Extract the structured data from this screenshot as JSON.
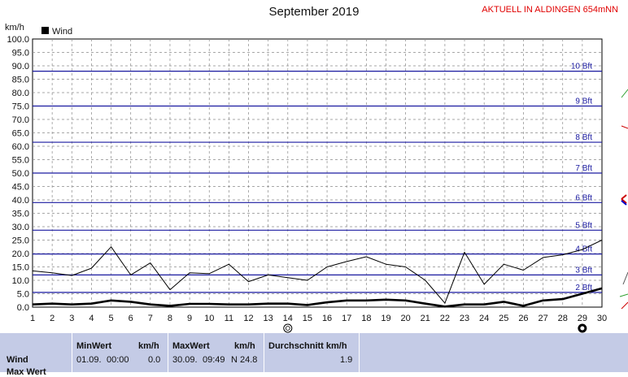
{
  "title": "September 2019",
  "station": "AKTUELL IN ALDINGEN 654mNN",
  "chart_data": {
    "type": "line",
    "ylabel": "km/h",
    "ylim": [
      0,
      100
    ],
    "yticks": [
      "0.0",
      "5.0",
      "10.0",
      "15.0",
      "20.0",
      "25.0",
      "30.0",
      "35.0",
      "40.0",
      "45.0",
      "50.0",
      "55.0",
      "60.0",
      "65.0",
      "70.0",
      "75.0",
      "80.0",
      "85.0",
      "90.0",
      "95.0",
      "100.0"
    ],
    "xlim": [
      1,
      30
    ],
    "xticks": [
      "1",
      "2",
      "3",
      "4",
      "5",
      "6",
      "7",
      "8",
      "9",
      "10",
      "11",
      "12",
      "13",
      "14",
      "15",
      "16",
      "17",
      "18",
      "19",
      "20",
      "21",
      "22",
      "23",
      "24",
      "25",
      "26",
      "27",
      "28",
      "29",
      "30"
    ],
    "legend": [
      "Wind"
    ],
    "beaufort": [
      {
        "label": "2 Bft",
        "value": 5.5
      },
      {
        "label": "3 Bft",
        "value": 12.0
      },
      {
        "label": "4 Bft",
        "value": 19.8
      },
      {
        "label": "5 Bft",
        "value": 28.7
      },
      {
        "label": "6 Bft",
        "value": 39.0
      },
      {
        "label": "7 Bft",
        "value": 50.0
      },
      {
        "label": "8 Bft",
        "value": 61.5
      },
      {
        "label": "9 Bft",
        "value": 75.0
      },
      {
        "label": "10 Bft",
        "value": 88.0
      }
    ],
    "series": [
      {
        "name": "Wind",
        "color": "#000000",
        "x": [
          1,
          2,
          3,
          4,
          5,
          6,
          7,
          8,
          9,
          10,
          11,
          12,
          13,
          14,
          15,
          16,
          17,
          18,
          19,
          20,
          21,
          22,
          23,
          24,
          25,
          26,
          27,
          28,
          29,
          30
        ],
        "values": [
          1.0,
          1.3,
          1.0,
          1.3,
          2.5,
          2.0,
          1.0,
          0.5,
          1.2,
          1.2,
          1.0,
          1.0,
          1.3,
          1.3,
          0.8,
          1.8,
          2.5,
          2.5,
          2.8,
          2.5,
          1.3,
          0.2,
          1.0,
          1.0,
          2.0,
          0.5,
          2.5,
          3.0,
          5.0,
          7.0
        ]
      },
      {
        "color": "#000000",
        "x": [
          1,
          2,
          3,
          4,
          5,
          6,
          7,
          8,
          9,
          10,
          11,
          12,
          13,
          14,
          15,
          16,
          17,
          18,
          19,
          20,
          21,
          22,
          23,
          24,
          25,
          26,
          27,
          28,
          29,
          30
        ],
        "values": [
          13.5,
          12.8,
          11.8,
          14.5,
          22.5,
          12.0,
          16.5,
          6.5,
          12.8,
          12.5,
          16.0,
          9.5,
          12.0,
          11.0,
          10.0,
          15.0,
          17.0,
          18.8,
          16.0,
          15.0,
          10.0,
          1.5,
          20.5,
          8.5,
          16.0,
          13.8,
          18.5,
          19.5,
          21.5,
          25.0
        ]
      }
    ],
    "marker_icons": [
      {
        "x": 14,
        "icon": "new-moon-icon"
      },
      {
        "x": 29,
        "icon": "full-moon-icon"
      }
    ]
  },
  "stats": {
    "headers": {
      "min": "MinWert",
      "unit1": "km/h",
      "max": "MaxWert",
      "unit2": "km/h",
      "avg": "Durchschnitt km/h"
    },
    "rows": [
      {
        "label": "Wind",
        "min_date": "01.09.",
        "min_time": "00:00",
        "min_val": "0.0",
        "max_date": "30.09.",
        "max_time": "09:49",
        "max_val": "N 24.8",
        "avg": "1.9"
      }
    ],
    "partial_row_label": "Max Wert"
  }
}
